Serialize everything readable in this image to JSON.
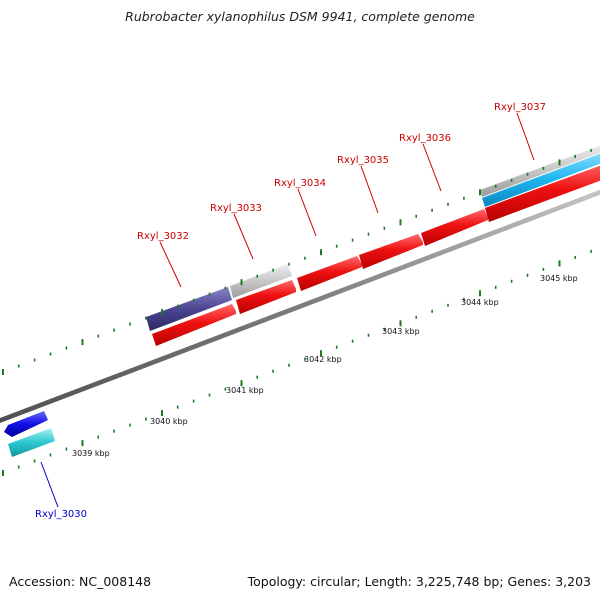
{
  "title": "Rubrobacter xylanophilus DSM 9941, complete genome",
  "accession": "Accession: NC_008148",
  "summary": "Topology: circular; Length: 3,225,748 bp; Genes: 3,203",
  "kbp_labels": [
    "3039 kbp",
    "3040 kbp",
    "3041 kbp",
    "3042 kbp",
    "3043 kbp",
    "3044 kbp",
    "3045 kbp"
  ],
  "genes": [
    {
      "name": "Rxyl_3030",
      "color": "#0000cc"
    },
    {
      "name": "Rxyl_3032",
      "color": "#cc0000"
    },
    {
      "name": "Rxyl_3033",
      "color": "#cc0000"
    },
    {
      "name": "Rxyl_3034",
      "color": "#cc0000"
    },
    {
      "name": "Rxyl_3035",
      "color": "#cc0000"
    },
    {
      "name": "Rxyl_3036",
      "color": "#cc0000"
    },
    {
      "name": "Rxyl_3037",
      "color": "#cc0000"
    }
  ]
}
